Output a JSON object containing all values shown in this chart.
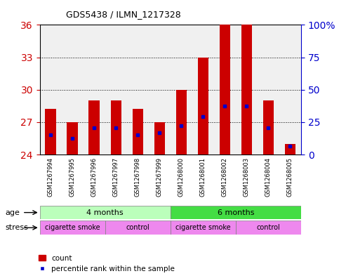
{
  "title": "GDS5438 / ILMN_1217328",
  "samples": [
    "GSM1267994",
    "GSM1267995",
    "GSM1267996",
    "GSM1267997",
    "GSM1267998",
    "GSM1267999",
    "GSM1268000",
    "GSM1268001",
    "GSM1268002",
    "GSM1268003",
    "GSM1268004",
    "GSM1268005"
  ],
  "bar_values": [
    28.2,
    27.0,
    29.0,
    29.0,
    28.2,
    27.0,
    30.0,
    33.0,
    36.0,
    36.0,
    29.0,
    25.0
  ],
  "blue_values": [
    25.8,
    25.5,
    26.5,
    26.5,
    25.8,
    26.0,
    26.7,
    27.5,
    28.5,
    28.5,
    26.5,
    24.8
  ],
  "y_min": 24,
  "y_max": 36,
  "y_ticks_left": [
    24,
    27,
    30,
    33,
    36
  ],
  "y_ticks_right": [
    0,
    25,
    50,
    75,
    100
  ],
  "bar_color": "#cc0000",
  "blue_color": "#0000cc",
  "bar_width": 0.5,
  "light_green": "#bbffbb",
  "dark_green": "#44dd44",
  "pink": "#ee88ee",
  "left_tick_color": "#cc0000",
  "right_tick_color": "#0000cc",
  "chart_bg": "#f0f0f0",
  "gridline_color": "#000000",
  "age_labels": [
    "4 months",
    "6 months"
  ],
  "age_starts": [
    0,
    6
  ],
  "age_ends": [
    5,
    11
  ],
  "stress_labels": [
    "cigarette smoke",
    "control",
    "cigarette smoke",
    "control"
  ],
  "stress_starts": [
    0,
    3,
    6,
    9
  ],
  "stress_ends": [
    2,
    5,
    8,
    11
  ]
}
